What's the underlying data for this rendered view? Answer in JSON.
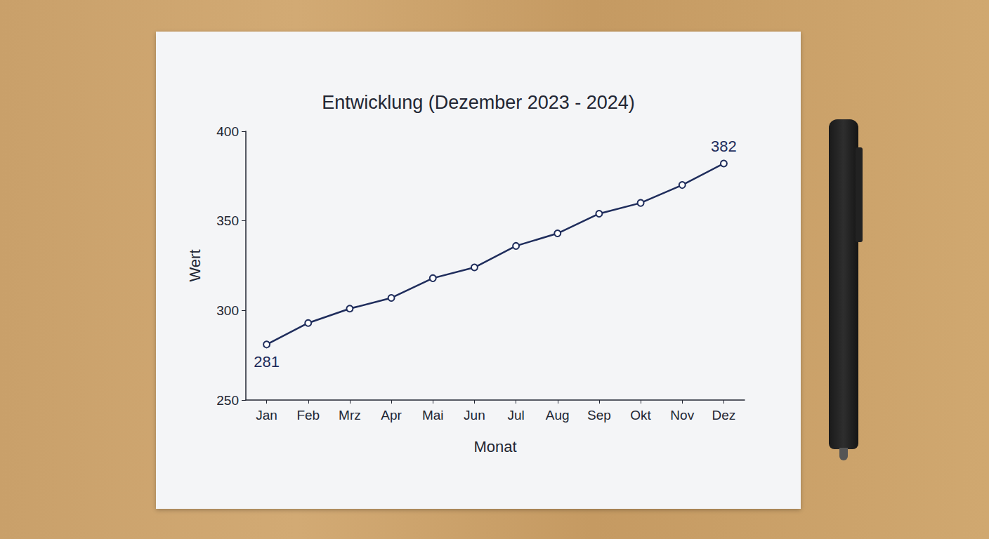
{
  "chart_data": {
    "type": "line",
    "title": "Entwicklung (Dezember 2023 - 2024)",
    "x_label": "Monat",
    "y_label": "Wert",
    "categories": [
      "Jan",
      "Feb",
      "Mrz",
      "Apr",
      "Mai",
      "Jun",
      "Jul",
      "Aug",
      "Sep",
      "Okt",
      "Nov",
      "Dez"
    ],
    "values": [
      281,
      293,
      301,
      307,
      318,
      324,
      336,
      343,
      354,
      360,
      370,
      382
    ],
    "color": "#1f2d5c",
    "marker": "circle",
    "ylim": [
      250,
      400
    ],
    "yticks": [
      250,
      300,
      350,
      400
    ],
    "grid": false,
    "annotations": [
      {
        "x": "Jan",
        "text": "281"
      },
      {
        "x": "Dez",
        "text": "382"
      }
    ]
  }
}
